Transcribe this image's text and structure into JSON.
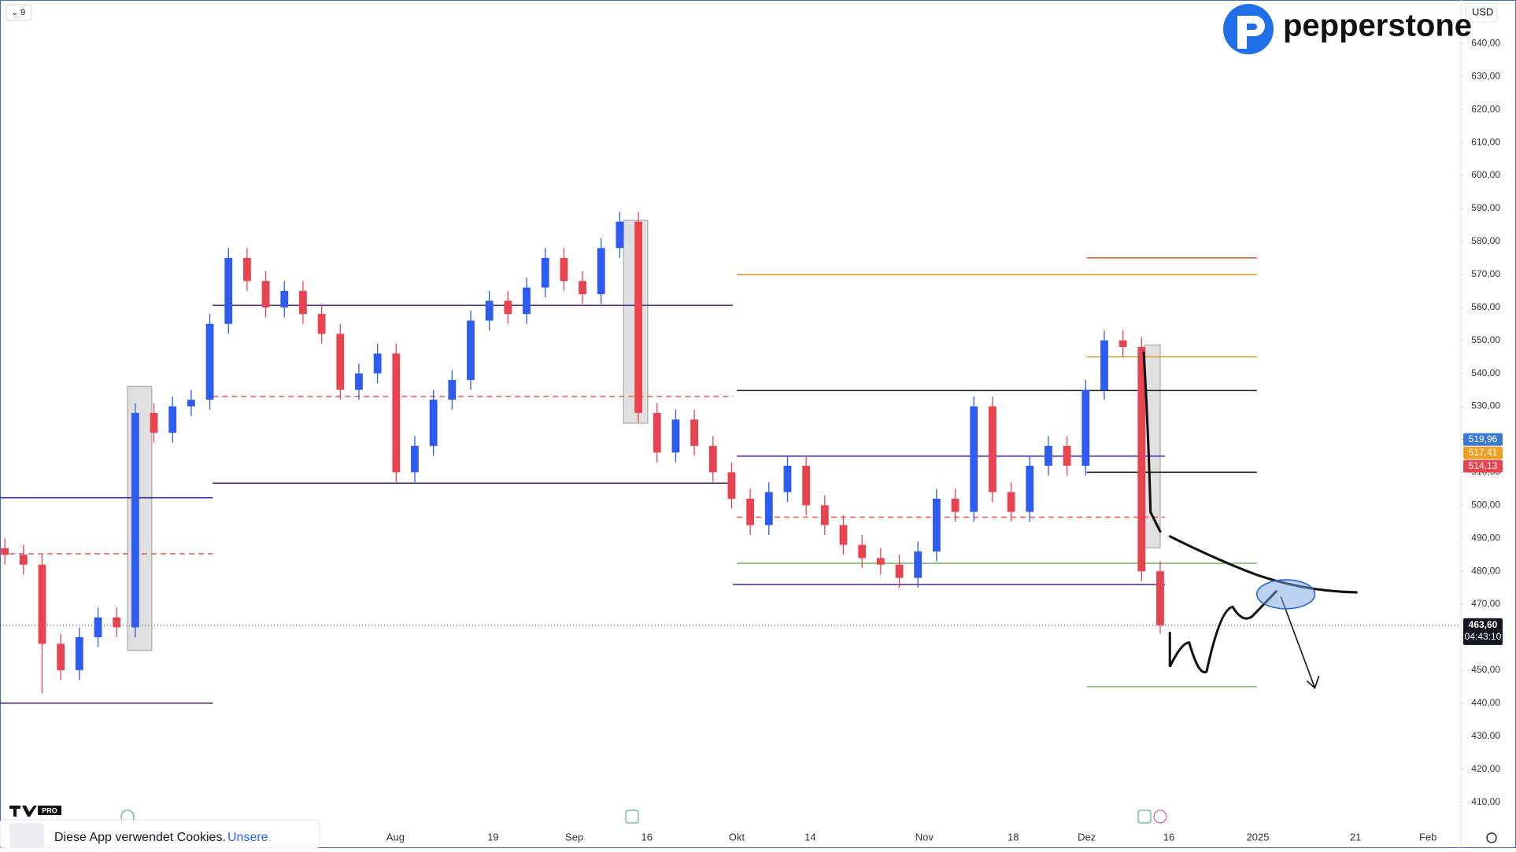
{
  "chart_data": {
    "type": "candlestick",
    "interval": "9",
    "currency": "USD",
    "brand": "pepperstone",
    "cookie_text": "Diese App verwendet Cookies.",
    "cookie_link": "Unsere",
    "up_color": "#2e5bf0",
    "down_color": "#e8434f",
    "ylim": [
      402.7,
      653.2
    ],
    "yticks": [
      {
        "value": 410,
        "label": "410,00"
      },
      {
        "value": 420,
        "label": "420,00"
      },
      {
        "value": 430,
        "label": "430,00"
      },
      {
        "value": 440,
        "label": "440,00"
      },
      {
        "value": 450,
        "label": "450,00"
      },
      {
        "value": 460,
        "label": "460,00"
      },
      {
        "value": 470,
        "label": "470,00"
      },
      {
        "value": 480,
        "label": "480,00"
      },
      {
        "value": 490,
        "label": "490,00"
      },
      {
        "value": 500,
        "label": "500,00"
      },
      {
        "value": 510,
        "label": "510,00"
      },
      {
        "value": 520,
        "label": "520,00"
      },
      {
        "value": 530,
        "label": "530,00"
      },
      {
        "value": 540,
        "label": "540,00"
      },
      {
        "value": 550,
        "label": "550,00"
      },
      {
        "value": 560,
        "label": "560,00"
      },
      {
        "value": 570,
        "label": "570,00"
      },
      {
        "value": 580,
        "label": "580,00"
      },
      {
        "value": 590,
        "label": "590,00"
      },
      {
        "value": 600,
        "label": "600,00"
      },
      {
        "value": 610,
        "label": "610,00"
      },
      {
        "value": 620,
        "label": "620,00"
      },
      {
        "value": 630,
        "label": "630,00"
      },
      {
        "value": 640,
        "label": "640,00"
      }
    ],
    "x_labels": [
      "Aug",
      "19",
      "Sep",
      "16",
      "Okt",
      "14",
      "Nov",
      "18",
      "Dez",
      "16",
      "2025",
      "21",
      "Feb"
    ],
    "open": [
      487,
      485,
      482,
      458,
      450,
      460,
      466,
      463,
      528,
      522,
      530,
      532,
      555,
      575,
      568,
      560,
      565,
      558,
      552,
      535,
      540,
      546,
      510,
      518,
      532,
      538,
      556,
      562,
      558,
      566,
      575,
      568,
      564,
      578,
      586,
      528,
      516,
      526,
      518,
      510,
      502,
      494,
      504,
      512,
      500,
      494,
      488,
      484,
      482,
      478,
      486,
      502,
      498,
      530,
      504,
      498,
      512,
      518,
      512,
      535,
      550,
      548,
      480
    ],
    "high": [
      490,
      488,
      485,
      461,
      463,
      469,
      469,
      531,
      531,
      533,
      535,
      558,
      578,
      578,
      571,
      568,
      568,
      561,
      555,
      543,
      549,
      549,
      521,
      535,
      541,
      559,
      565,
      565,
      569,
      578,
      578,
      571,
      581,
      589,
      589,
      531,
      529,
      529,
      521,
      513,
      505,
      507,
      515,
      515,
      503,
      497,
      491,
      487,
      485,
      489,
      505,
      505,
      533,
      533,
      507,
      515,
      521,
      521,
      538,
      553,
      553,
      551,
      483
    ],
    "low": [
      482,
      479,
      443,
      447,
      447,
      457,
      460,
      460,
      519,
      519,
      527,
      529,
      552,
      565,
      557,
      557,
      555,
      549,
      532,
      532,
      537,
      507,
      507,
      515,
      529,
      535,
      553,
      555,
      555,
      563,
      565,
      561,
      561,
      575,
      525,
      513,
      513,
      515,
      507,
      499,
      491,
      491,
      501,
      497,
      491,
      485,
      481,
      479,
      475,
      475,
      483,
      495,
      495,
      501,
      495,
      495,
      509,
      509,
      509,
      532,
      545,
      477,
      461
    ],
    "close": [
      485,
      482,
      458,
      450,
      460,
      466,
      463,
      528,
      522,
      530,
      532,
      555,
      575,
      568,
      560,
      565,
      558,
      552,
      535,
      540,
      546,
      510,
      518,
      532,
      538,
      556,
      562,
      558,
      566,
      575,
      568,
      564,
      578,
      586,
      528,
      516,
      526,
      518,
      510,
      502,
      494,
      504,
      512,
      500,
      494,
      488,
      484,
      482,
      478,
      486,
      502,
      498,
      530,
      504,
      498,
      512,
      518,
      512,
      535,
      550,
      548,
      480,
      463.6
    ],
    "levels": [
      {
        "price": 560.6,
        "color": "#5b2c8f"
      },
      {
        "price": 502.3,
        "color": "#3b2fa0"
      },
      {
        "price": 506.7,
        "color": "#5b2c8f"
      },
      {
        "price": 440,
        "color": "#5b2c8f"
      },
      {
        "price": 485.3,
        "color": "#f06060"
      },
      {
        "price": 533,
        "color": "#f06060"
      },
      {
        "price": 570,
        "color": "#e0a030"
      },
      {
        "price": 575,
        "color": "#e06030"
      },
      {
        "price": 545,
        "color": "#e0a030"
      },
      {
        "price": 534.8,
        "color": "#222222"
      },
      {
        "price": 514.9,
        "color": "#5b2cc8"
      },
      {
        "price": 510,
        "color": "#222222"
      },
      {
        "price": 496.4,
        "color": "#f06060"
      },
      {
        "price": 482.4,
        "color": "#7cba6c"
      },
      {
        "price": 476,
        "color": "#6a2c8f"
      },
      {
        "price": 445,
        "color": "#7cba6c"
      }
    ],
    "price_labels": [
      {
        "value": 519.96,
        "label": "519,96",
        "color": "#3a78d8"
      },
      {
        "value": 517.41,
        "label": "517,41",
        "color": "#f0a020"
      },
      {
        "value": 514.13,
        "label": "514,13",
        "color": "#e8434f"
      }
    ],
    "last_price": {
      "value": 463.6,
      "label": "463,60",
      "countdown": "04:43:10"
    }
  }
}
